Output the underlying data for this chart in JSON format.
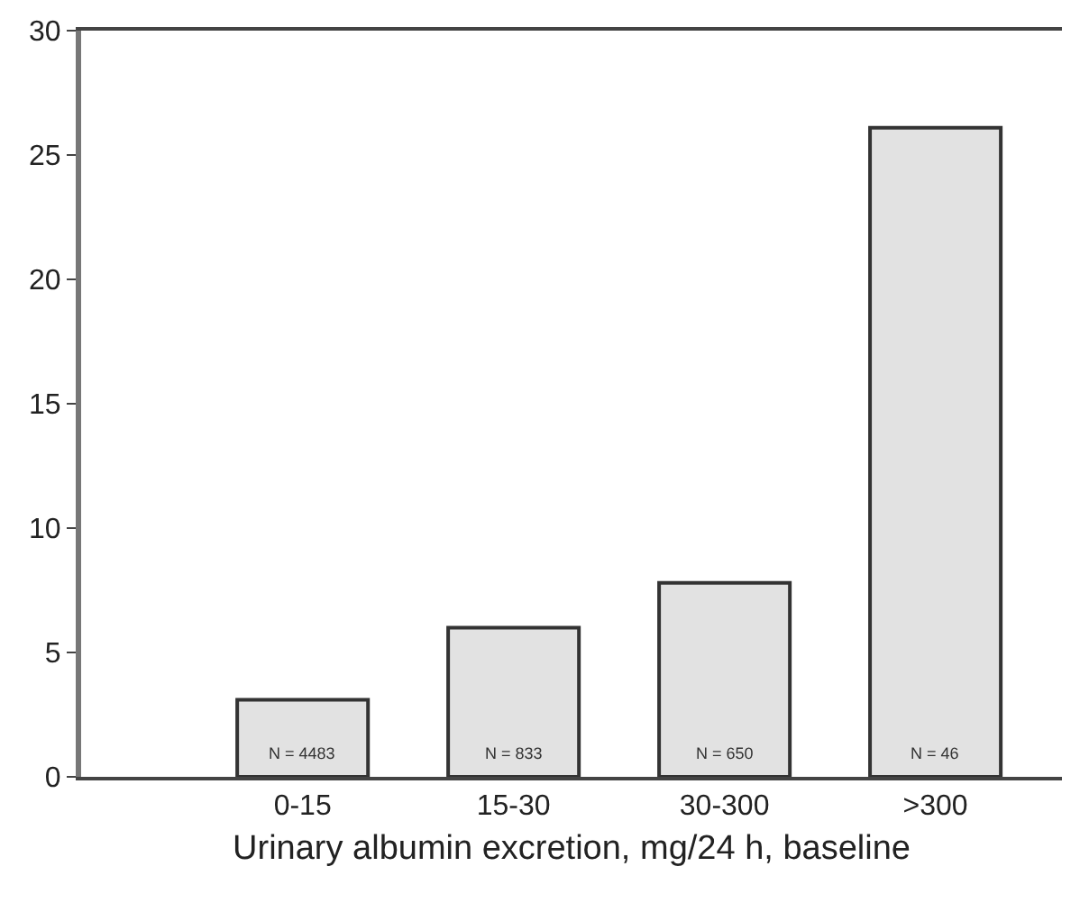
{
  "chart_data": {
    "type": "bar",
    "categories": [
      "0-15",
      "15-30",
      "30-300",
      ">300"
    ],
    "values": [
      3.1,
      6.0,
      7.8,
      26.1
    ],
    "annotations": [
      "N = 4483",
      "N = 833",
      "N = 650",
      "N = 46"
    ],
    "color": "#e2e2e2",
    "xlabel": "Urinary albumin excretion, mg/24 h, baseline",
    "ylim": [
      0,
      30
    ],
    "yticks": [
      0,
      5,
      10,
      15,
      20,
      25,
      30
    ]
  }
}
